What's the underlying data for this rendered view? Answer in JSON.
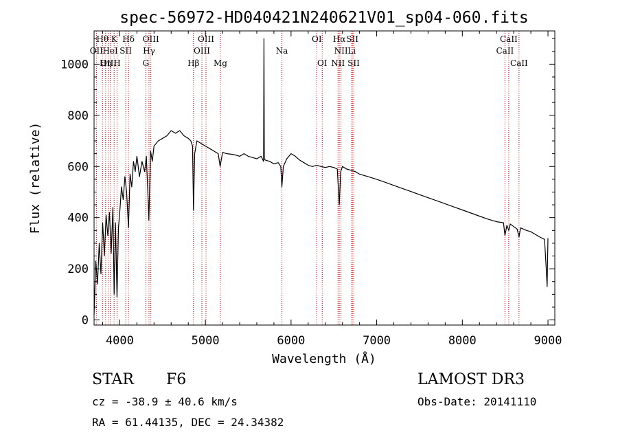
{
  "chart_data": {
    "type": "line",
    "title": "spec-56972-HD040421N240621V01_sp04-060.fits",
    "xlabel": "Wavelength (Å)",
    "ylabel": "Flux (relative)",
    "xlim": [
      3700,
      9080
    ],
    "ylim": [
      -20,
      1130
    ],
    "x_ticks": [
      4000,
      5000,
      6000,
      7000,
      8000,
      9000
    ],
    "x_tick_labels": [
      "4000",
      "5000",
      "6000",
      "7000",
      "8000",
      "9000"
    ],
    "y_ticks": [
      0,
      200,
      400,
      600,
      800,
      1000
    ],
    "y_tick_labels": [
      "0",
      "200",
      "400",
      "600",
      "800",
      "1000"
    ],
    "line_color": "#000000",
    "marker_color": "#cc0000",
    "series": [
      {
        "name": "flux",
        "x": [
          3700,
          3720,
          3740,
          3760,
          3780,
          3800,
          3820,
          3840,
          3860,
          3880,
          3900,
          3920,
          3934,
          3950,
          3968,
          3985,
          4000,
          4020,
          4040,
          4060,
          4080,
          4102,
          4120,
          4140,
          4160,
          4180,
          4200,
          4230,
          4260,
          4290,
          4310,
          4330,
          4340,
          4360,
          4380,
          4400,
          4450,
          4500,
          4550,
          4600,
          4650,
          4700,
          4750,
          4800,
          4830,
          4850,
          4861,
          4875,
          4900,
          4950,
          5000,
          5050,
          5100,
          5150,
          5172,
          5200,
          5250,
          5300,
          5350,
          5400,
          5450,
          5500,
          5550,
          5600,
          5650,
          5680,
          5684,
          5688,
          5700,
          5750,
          5800,
          5850,
          5880,
          5893,
          5910,
          5950,
          6000,
          6050,
          6100,
          6150,
          6200,
          6250,
          6300,
          6350,
          6400,
          6450,
          6500,
          6540,
          6563,
          6580,
          6600,
          6650,
          6700,
          6750,
          6800,
          6900,
          7000,
          7100,
          7200,
          7300,
          7400,
          7500,
          7600,
          7700,
          7800,
          7900,
          8000,
          8100,
          8200,
          8300,
          8400,
          8480,
          8498,
          8520,
          8542,
          8560,
          8600,
          8640,
          8662,
          8680,
          8750,
          8800,
          8850,
          8900,
          8960,
          8980,
          8990,
          9000
        ],
        "y": [
          20,
          230,
          140,
          300,
          180,
          380,
          250,
          410,
          330,
          420,
          260,
          440,
          100,
          380,
          90,
          360,
          420,
          520,
          470,
          560,
          500,
          360,
          570,
          520,
          620,
          580,
          640,
          560,
          620,
          580,
          640,
          480,
          390,
          660,
          620,
          680,
          700,
          710,
          720,
          740,
          730,
          740,
          720,
          710,
          700,
          680,
          430,
          650,
          700,
          690,
          680,
          670,
          660,
          650,
          600,
          655,
          650,
          648,
          645,
          640,
          650,
          640,
          635,
          630,
          640,
          620,
          1100,
          630,
          625,
          620,
          610,
          615,
          600,
          520,
          600,
          630,
          650,
          640,
          625,
          615,
          605,
          600,
          605,
          600,
          596,
          600,
          596,
          590,
          450,
          580,
          600,
          590,
          585,
          580,
          570,
          560,
          550,
          538,
          526,
          514,
          502,
          490,
          478,
          466,
          454,
          442,
          430,
          418,
          406,
          394,
          384,
          380,
          330,
          370,
          350,
          375,
          365,
          355,
          325,
          360,
          350,
          345,
          335,
          325,
          315,
          200,
          130,
          320
        ]
      }
    ],
    "lines": [
      {
        "name": "Hθ",
        "wave": 3798,
        "row": 0
      },
      {
        "name": "OII",
        "wave": 3727,
        "row": 1
      },
      {
        "name": "OIII",
        "wave": 3869,
        "row": 2
      },
      {
        "name": "HeI",
        "wave": 3889,
        "row": 1
      },
      {
        "name": "Hη",
        "wave": 3835,
        "row": 2
      },
      {
        "name": "K",
        "wave": 3934,
        "row": 0
      },
      {
        "name": "SII",
        "wave": 4070,
        "row": 1
      },
      {
        "name": "H",
        "wave": 3968,
        "row": 2
      },
      {
        "name": "Hδ",
        "wave": 4102,
        "row": 0
      },
      {
        "name": "OIII",
        "wave": 4363,
        "row": 0
      },
      {
        "name": "Hγ",
        "wave": 4341,
        "row": 1
      },
      {
        "name": "G",
        "wave": 4305,
        "row": 2
      },
      {
        "name": "OIII",
        "wave": 5007,
        "row": 0
      },
      {
        "name": "OIII",
        "wave": 4959,
        "row": 1
      },
      {
        "name": "Hβ",
        "wave": 4861,
        "row": 2
      },
      {
        "name": "Mg",
        "wave": 5175,
        "row": 2
      },
      {
        "name": "Na",
        "wave": 5893,
        "row": 1
      },
      {
        "name": "OI",
        "wave": 6300,
        "row": 0
      },
      {
        "name": "OI",
        "wave": 6364,
        "row": 2
      },
      {
        "name": "Hα",
        "wave": 6563,
        "row": 0
      },
      {
        "name": "SII",
        "wave": 6716,
        "row": 0
      },
      {
        "name": "NII",
        "wave": 6583,
        "row": 1
      },
      {
        "name": "Li",
        "wave": 6708,
        "row": 1
      },
      {
        "name": "NII",
        "wave": 6548,
        "row": 2
      },
      {
        "name": "SII",
        "wave": 6731,
        "row": 2
      },
      {
        "name": "CaII",
        "wave": 8542,
        "row": 0
      },
      {
        "name": "CaII",
        "wave": 8498,
        "row": 1
      },
      {
        "name": "CaII",
        "wave": 8662,
        "row": 2
      }
    ]
  },
  "info": {
    "obj_class": "STAR",
    "subclass": "F6",
    "survey": "LAMOST DR3",
    "redshift": "cz = -38.9 ± 40.6 km/s",
    "obs_date": "Obs-Date: 20141110",
    "coords": "RA =  61.44135, DEC =  24.34382"
  }
}
